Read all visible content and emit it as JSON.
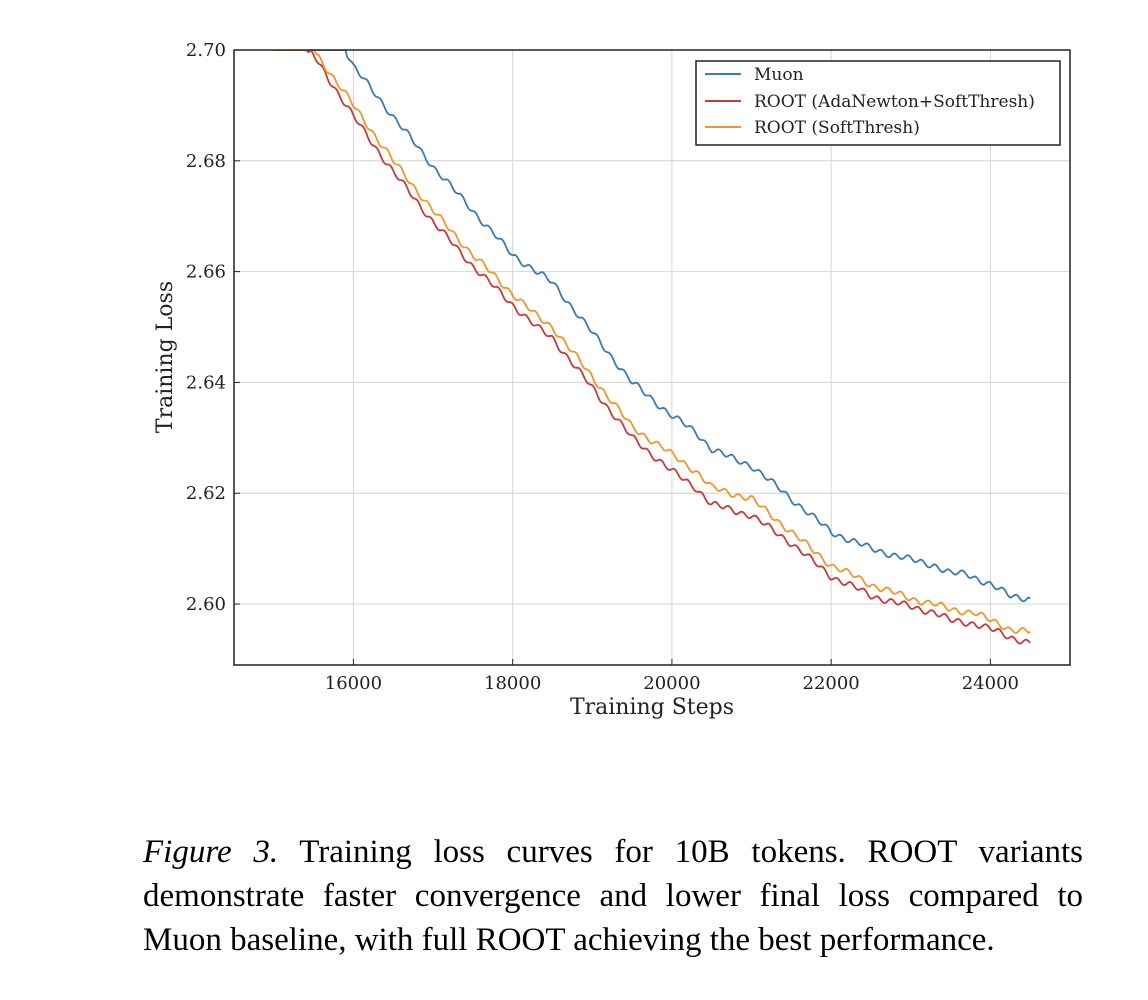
{
  "chart_data": {
    "type": "line",
    "xlabel": "Training Steps",
    "ylabel": "Training Loss",
    "xlim": [
      14500,
      25000
    ],
    "ylim": [
      2.589,
      2.7
    ],
    "x_ticks": [
      16000,
      18000,
      20000,
      22000,
      24000
    ],
    "x_tick_labels": [
      "16000",
      "18000",
      "20000",
      "22000",
      "24000"
    ],
    "y_ticks": [
      2.6,
      2.62,
      2.64,
      2.66,
      2.68,
      2.7
    ],
    "y_tick_labels": [
      "2.60",
      "2.62",
      "2.64",
      "2.66",
      "2.68",
      "2.70"
    ],
    "grid": true,
    "legend_position": "top-right",
    "series": [
      {
        "name": "Muon",
        "color": "#3a7bb0",
        "x": [
          15000,
          15500,
          15900,
          16000,
          16500,
          17000,
          17500,
          18000,
          18300,
          18500,
          19000,
          19500,
          20000,
          20300,
          20500,
          20800,
          21000,
          21500,
          22000,
          22500,
          23000,
          23300,
          23500,
          23700,
          24000,
          24250,
          24500
        ],
        "y": [
          2.7,
          2.7,
          2.7,
          2.697,
          2.688,
          2.679,
          2.671,
          2.663,
          2.66,
          2.658,
          2.649,
          2.64,
          2.634,
          2.631,
          2.628,
          2.626,
          2.625,
          2.619,
          2.613,
          2.61,
          2.608,
          2.607,
          2.6055,
          2.6055,
          2.6035,
          2.6015,
          2.601
        ]
      },
      {
        "name": "ROOT (AdaNewton+SoftThresh)",
        "color": "#c93a3a",
        "x": [
          15000,
          15400,
          15500,
          16000,
          16500,
          17000,
          17500,
          18000,
          18300,
          18500,
          19000,
          19500,
          20000,
          20300,
          20500,
          21000,
          21500,
          22000,
          22300,
          22500,
          23000,
          23300,
          23500,
          23800,
          24000,
          24250,
          24500
        ],
        "y": [
          2.7,
          2.7,
          2.699,
          2.688,
          2.678,
          2.669,
          2.661,
          2.654,
          2.65,
          2.648,
          2.639,
          2.63,
          2.624,
          2.621,
          2.618,
          2.616,
          2.611,
          2.605,
          2.603,
          2.6015,
          2.5995,
          2.5985,
          2.597,
          2.5965,
          2.5955,
          2.594,
          2.593
        ]
      },
      {
        "name": "ROOT (SoftThresh)",
        "color": "#f0962f",
        "x": [
          15000,
          15500,
          15550,
          16000,
          16500,
          17000,
          17500,
          18000,
          18300,
          18500,
          19000,
          19500,
          20000,
          20300,
          20500,
          21000,
          21500,
          22000,
          22300,
          22500,
          23000,
          23300,
          23500,
          23800,
          24000,
          24250,
          24500
        ],
        "y": [
          2.7,
          2.7,
          2.699,
          2.69,
          2.68,
          2.671,
          2.663,
          2.656,
          2.652,
          2.65,
          2.641,
          2.632,
          2.627,
          2.624,
          2.621,
          2.619,
          2.613,
          2.607,
          2.605,
          2.6035,
          2.601,
          2.6,
          2.599,
          2.5985,
          2.597,
          2.5955,
          2.595
        ]
      }
    ]
  },
  "caption": {
    "label": "Figure 3.",
    "text": " Training loss curves for 10B tokens.  ROOT variants demonstrate faster convergence and lower final loss compared to Muon baseline, with full ROOT achieving the best performance."
  }
}
